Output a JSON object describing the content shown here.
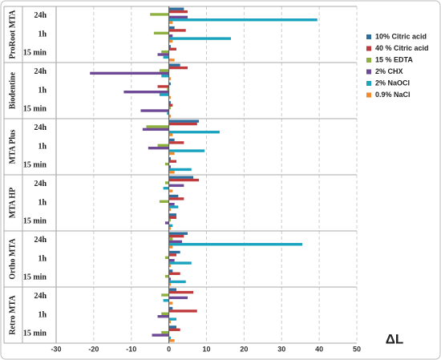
{
  "chart_data": {
    "type": "bar",
    "orientation": "horizontal",
    "x_label": "ΔL",
    "groups": [
      "ProRoot MTA",
      "Biodentine",
      "MTA Plus",
      "MTA HP",
      "Ortho MTA",
      "Retro MTA"
    ],
    "categories": [
      "24h",
      "1h",
      "15 min",
      "24h",
      "1h",
      "15 min",
      "24h",
      "1h",
      "15 min",
      "24h",
      "1h",
      "15 min",
      "24h",
      "1h",
      "15 min",
      "24h",
      "1h",
      "15 min"
    ],
    "series": [
      {
        "name": "10% Citric acid",
        "color": "#2e6e9e",
        "values": [
          4,
          1.5,
          0.5,
          3,
          0.5,
          0.5,
          8,
          1.5,
          0.5,
          6.5,
          2.5,
          2,
          5,
          3,
          1,
          2,
          1,
          2
        ]
      },
      {
        "name": "40 % Citric acid",
        "color": "#c0393b",
        "values": [
          5,
          4.5,
          2,
          5,
          -3,
          1,
          7.5,
          4,
          2,
          8,
          4,
          2,
          4,
          2,
          3,
          6.5,
          7.5,
          3
        ]
      },
      {
        "name": "15 % EDTA",
        "color": "#8db03e",
        "values": [
          -5,
          -4,
          -2,
          -2.5,
          -0.5,
          0.5,
          -6,
          -3,
          -1,
          -1,
          -2.5,
          0.5,
          1,
          -1,
          -1,
          -2,
          -2,
          -2
        ]
      },
      {
        "name": "2% CHX",
        "color": "#6e4a96",
        "values": [
          5,
          1,
          -3,
          -21,
          -12,
          -7.5,
          -7,
          -5.5,
          0.5,
          4,
          1.5,
          -1,
          3.5,
          1.5,
          0.5,
          5,
          -3,
          -4.5
        ]
      },
      {
        "name": "2% NaOCl",
        "color": "#1aa3c0",
        "values": [
          39.5,
          16.5,
          -1.5,
          -2,
          -2.5,
          -0.5,
          13.5,
          9.5,
          6,
          -1.5,
          2.5,
          1,
          35.5,
          6,
          4.5,
          -1.5,
          2,
          0.5
        ]
      },
      {
        "name": "0.9% NaCl",
        "color": "#f08a2c",
        "values": [
          1,
          1,
          1.5,
          0.5,
          0.5,
          0.5,
          1,
          1.5,
          1.5,
          1,
          0.5,
          0.5,
          1,
          0.5,
          0.5,
          1,
          0.5,
          1.5
        ]
      }
    ],
    "xlim": [
      -30,
      50
    ],
    "xticks": [
      -30,
      -20,
      -10,
      0,
      10,
      20,
      30,
      40,
      50
    ],
    "grid": true,
    "legend": "right"
  }
}
